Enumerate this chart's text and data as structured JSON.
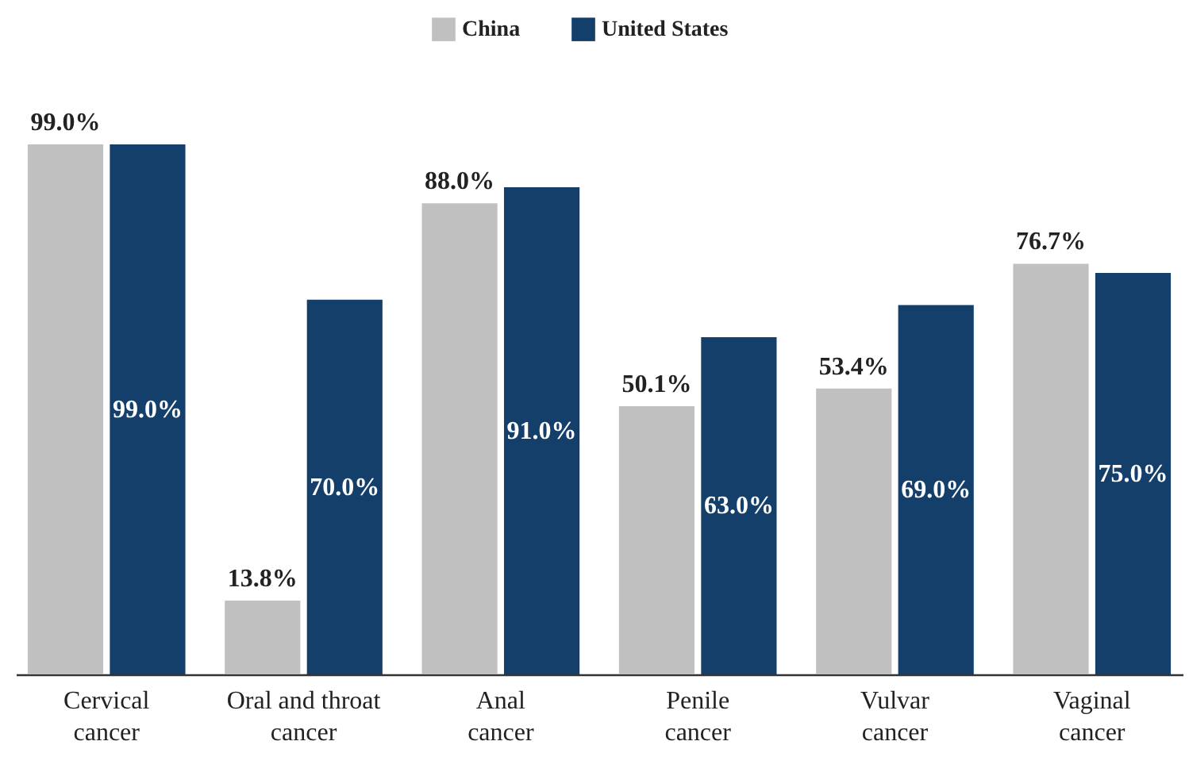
{
  "chart_data": {
    "type": "bar",
    "categories": [
      "Cervical cancer",
      "Oral and throat cancer",
      "Anal cancer",
      "Penile cancer",
      "Vulvar cancer",
      "Vaginal cancer"
    ],
    "series": [
      {
        "name": "China",
        "color": "#c0c0c0",
        "values": [
          99.0,
          13.8,
          88.0,
          50.1,
          53.4,
          76.7
        ],
        "value_labels": [
          "99.0%",
          "13.8%",
          "88.0%",
          "50.1%",
          "53.4%",
          "76.7%"
        ]
      },
      {
        "name": "United States",
        "color": "#143f6b",
        "values": [
          99.0,
          70.0,
          91.0,
          63.0,
          69.0,
          75.0
        ],
        "value_labels": [
          "99.0%",
          "70.0%",
          "91.0%",
          "63.0%",
          "69.0%",
          "75.0%"
        ]
      }
    ],
    "legend": "top",
    "grid": false
  }
}
